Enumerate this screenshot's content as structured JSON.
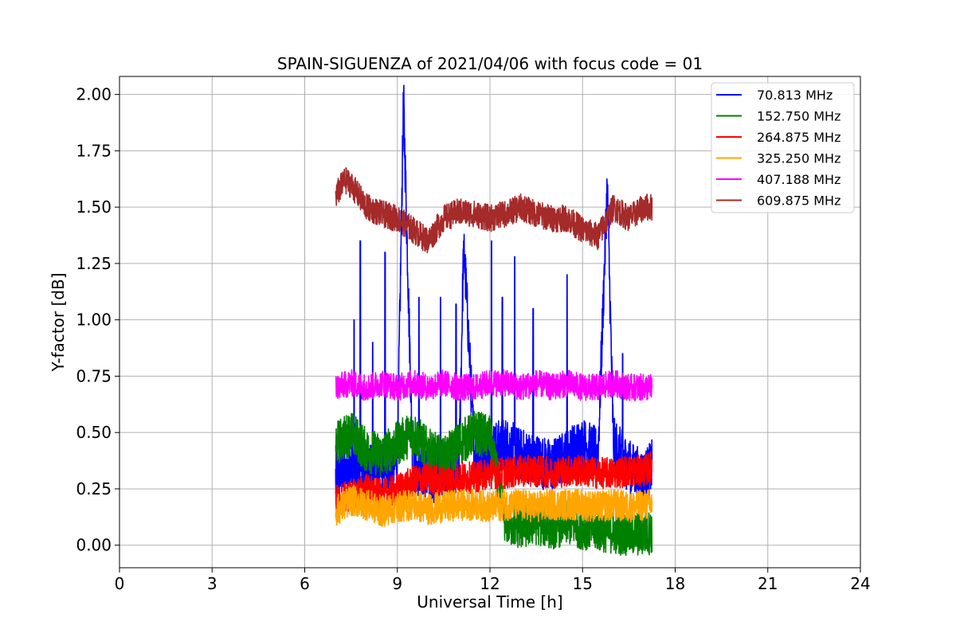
{
  "chart_data": {
    "type": "line",
    "title": "SPAIN-SIGUENZA of 2021/04/06 with focus code = 01",
    "xlabel": "Universal Time [h]",
    "ylabel": "Y-factor [dB]",
    "xlim": [
      0,
      24
    ],
    "ylim": [
      -0.1,
      2.08
    ],
    "xticks": [
      0,
      3,
      6,
      9,
      12,
      15,
      18,
      21,
      24
    ],
    "xtick_labels": [
      "0",
      "3",
      "6",
      "9",
      "12",
      "15",
      "18",
      "21",
      "24"
    ],
    "yticks": [
      0.0,
      0.25,
      0.5,
      0.75,
      1.0,
      1.25,
      1.5,
      1.75,
      2.0
    ],
    "ytick_labels": [
      "0.00",
      "0.25",
      "0.50",
      "0.75",
      "1.00",
      "1.25",
      "1.50",
      "1.75",
      "2.00"
    ],
    "grid": true,
    "legend_position": "top-right",
    "x_range": [
      7.0,
      17.25
    ],
    "series": [
      {
        "name": "  70.813 MHz",
        "color": "#0000ff",
        "x": [
          7.0,
          7.5,
          8.0,
          8.5,
          9.0,
          9.2,
          9.5,
          10.0,
          10.5,
          11.0,
          11.15,
          11.5,
          12.0,
          12.5,
          13.0,
          13.5,
          14.0,
          14.5,
          15.0,
          15.5,
          15.8,
          16.0,
          16.5,
          17.0,
          17.25
        ],
        "y": [
          0.3,
          0.35,
          0.32,
          0.35,
          0.36,
          1.98,
          0.35,
          0.3,
          0.32,
          0.35,
          1.35,
          0.4,
          0.42,
          0.45,
          0.4,
          0.38,
          0.35,
          0.4,
          0.45,
          0.4,
          1.6,
          0.45,
          0.35,
          0.3,
          0.35
        ],
        "spikes": [
          [
            7.6,
            1.0
          ],
          [
            7.8,
            1.35
          ],
          [
            8.2,
            0.9
          ],
          [
            8.6,
            1.3
          ],
          [
            9.2,
            1.98
          ],
          [
            9.7,
            1.1
          ],
          [
            10.4,
            1.1
          ],
          [
            10.9,
            1.07
          ],
          [
            11.15,
            1.35
          ],
          [
            12.05,
            1.35
          ],
          [
            12.4,
            1.1
          ],
          [
            12.8,
            1.28
          ],
          [
            13.4,
            1.05
          ],
          [
            14.5,
            1.2
          ],
          [
            15.8,
            1.6
          ],
          [
            16.3,
            0.85
          ]
        ]
      },
      {
        "name": "152.750 MHz",
        "color": "#008000",
        "x": [
          7.0,
          7.5,
          8.0,
          8.5,
          9.0,
          9.5,
          10.0,
          10.5,
          11.0,
          11.5,
          12.0,
          12.5,
          13.0,
          13.5,
          14.0,
          14.5,
          15.0,
          15.5,
          16.0,
          16.5,
          17.0,
          17.25
        ],
        "y": [
          0.45,
          0.5,
          0.42,
          0.4,
          0.45,
          0.5,
          0.42,
          0.38,
          0.45,
          0.5,
          0.48,
          0.1,
          0.08,
          0.1,
          0.08,
          0.1,
          0.08,
          0.07,
          0.06,
          0.05,
          0.05,
          0.06
        ]
      },
      {
        "name": "264.875 MHz",
        "color": "#ff0000",
        "x": [
          7.0,
          7.5,
          8.0,
          8.5,
          9.0,
          9.5,
          10.0,
          10.5,
          11.0,
          11.5,
          12.0,
          12.5,
          13.0,
          13.5,
          14.0,
          14.5,
          15.0,
          15.5,
          16.0,
          16.5,
          17.0,
          17.25
        ],
        "y": [
          0.2,
          0.22,
          0.25,
          0.22,
          0.25,
          0.28,
          0.3,
          0.28,
          0.3,
          0.3,
          0.32,
          0.32,
          0.33,
          0.33,
          0.32,
          0.33,
          0.33,
          0.32,
          0.32,
          0.33,
          0.33,
          0.35
        ]
      },
      {
        "name": "325.250 MHz",
        "color": "#ffa500",
        "x": [
          7.0,
          7.5,
          8.0,
          8.5,
          9.0,
          9.5,
          10.0,
          10.5,
          11.0,
          11.5,
          12.0,
          12.5,
          13.0,
          13.5,
          14.0,
          14.5,
          15.0,
          15.5,
          16.0,
          16.5,
          17.0,
          17.25
        ],
        "y": [
          0.15,
          0.2,
          0.18,
          0.15,
          0.17,
          0.18,
          0.16,
          0.17,
          0.18,
          0.18,
          0.17,
          0.18,
          0.18,
          0.17,
          0.18,
          0.18,
          0.18,
          0.17,
          0.18,
          0.17,
          0.18,
          0.18
        ]
      },
      {
        "name": "407.188 MHz",
        "color": "#ff00ff",
        "x": [
          7.0,
          7.5,
          8.0,
          8.5,
          9.0,
          9.5,
          10.0,
          10.5,
          11.0,
          11.5,
          12.0,
          12.5,
          13.0,
          13.5,
          14.0,
          14.5,
          15.0,
          15.5,
          16.0,
          16.5,
          17.0,
          17.25
        ],
        "y": [
          0.7,
          0.72,
          0.7,
          0.72,
          0.7,
          0.72,
          0.7,
          0.72,
          0.7,
          0.7,
          0.72,
          0.72,
          0.7,
          0.72,
          0.7,
          0.72,
          0.7,
          0.7,
          0.72,
          0.7,
          0.7,
          0.7
        ]
      },
      {
        "name": "609.875 MHz",
        "color": "#a52a2a",
        "x": [
          7.0,
          7.3,
          7.5,
          8.0,
          8.5,
          9.0,
          9.5,
          10.0,
          10.5,
          11.0,
          11.5,
          12.0,
          12.5,
          13.0,
          13.5,
          14.0,
          14.5,
          15.0,
          15.5,
          16.0,
          16.5,
          17.0,
          17.25
        ],
        "y": [
          1.55,
          1.62,
          1.6,
          1.5,
          1.47,
          1.45,
          1.4,
          1.35,
          1.45,
          1.48,
          1.47,
          1.45,
          1.47,
          1.5,
          1.47,
          1.45,
          1.45,
          1.4,
          1.37,
          1.5,
          1.45,
          1.5,
          1.5
        ]
      }
    ]
  }
}
